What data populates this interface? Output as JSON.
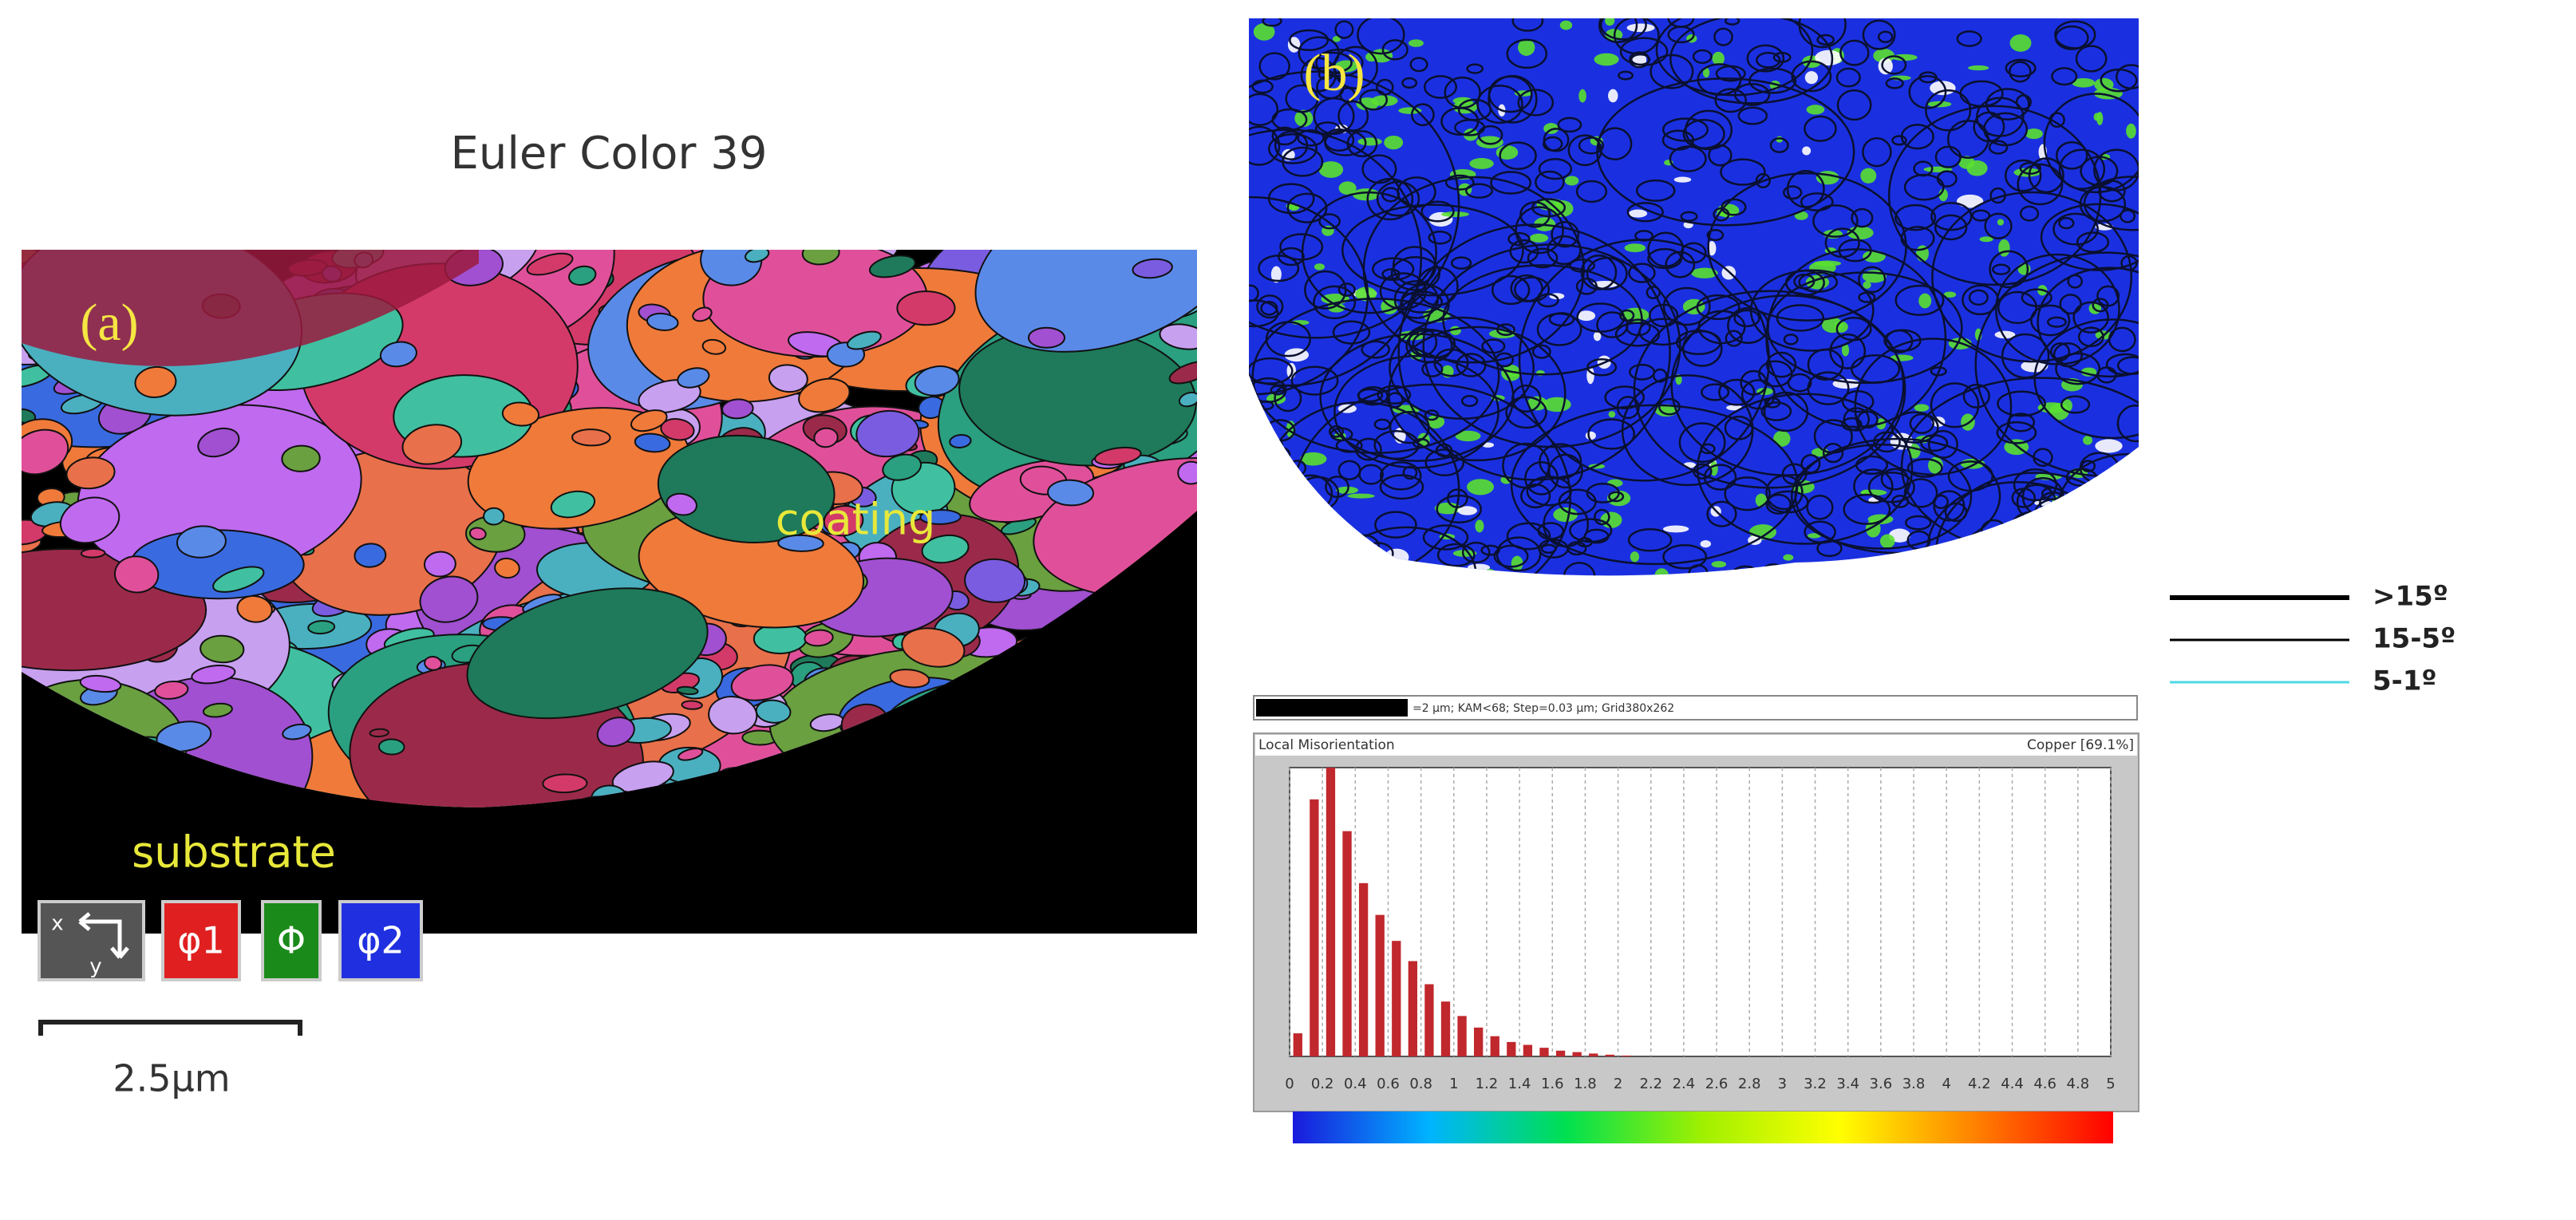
{
  "panel_a": {
    "label": "(a)",
    "title": "Euler Color 39",
    "annotations": [
      "coating",
      "substrate"
    ],
    "key": {
      "axes": [
        "x",
        "y"
      ],
      "angles": [
        "φ1",
        "Φ",
        "φ2"
      ]
    },
    "scale_bar": "2.5μm"
  },
  "panel_b": {
    "label": "(b)",
    "legend": [
      {
        "label": ">15º",
        "color": "#000000"
      },
      {
        "label": "15-5º",
        "color": "#000000"
      },
      {
        "label": "5-1º",
        "color": "#4fd9e6"
      }
    ]
  },
  "chart_data": {
    "type": "histogram",
    "title": "Local Misorientation",
    "subtitle": "Copper [69.1%]",
    "annotations": [
      "=2 µm; KAM<68; Step=0.03 µm; Grid380x262"
    ],
    "bins": [
      0,
      0.1,
      0.2,
      0.3,
      0.4,
      0.5,
      0.6,
      0.7,
      0.8,
      0.9,
      1,
      1.1,
      1.2,
      1.3,
      1.4,
      1.5,
      1.6,
      1.7,
      1.8,
      1.9,
      2,
      2.1
    ],
    "values": [
      8,
      89,
      100,
      78,
      60,
      49,
      40,
      33,
      25,
      19,
      14,
      10,
      7,
      5,
      4,
      3,
      2,
      1.5,
      1,
      0.6,
      0.3
    ],
    "color": "#c0282d",
    "xlim": [
      0,
      5
    ],
    "xticks": [
      0,
      0.2,
      0.4,
      0.6,
      0.8,
      1,
      1.2,
      1.4,
      1.6,
      1.8,
      2,
      2.2,
      2.4,
      2.6,
      2.8,
      3,
      3.2,
      3.4,
      3.6,
      3.8,
      4,
      4.2,
      4.4,
      4.6,
      4.8,
      5
    ],
    "ylim": [
      0,
      100
    ],
    "grid": true,
    "colormap": [
      "#1a1adc",
      "#00b4ff",
      "#00e050",
      "#a0f000",
      "#ffff00",
      "#ff8000",
      "#ff0000"
    ]
  }
}
